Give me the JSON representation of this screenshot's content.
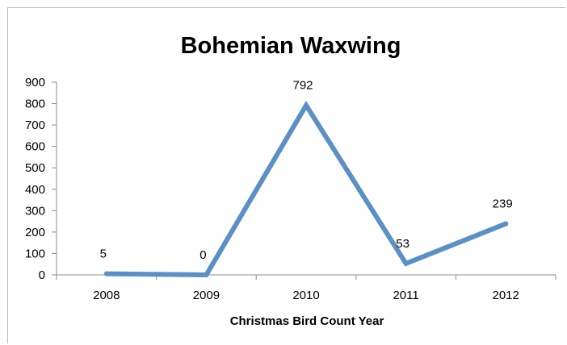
{
  "chart_data": {
    "type": "line",
    "title": "Bohemian Waxwing",
    "xlabel": "Christmas Bird Count Year",
    "ylabel": "",
    "categories": [
      "2008",
      "2009",
      "2010",
      "2011",
      "2012"
    ],
    "series": [
      {
        "values": [
          5,
          0,
          792,
          53,
          239
        ],
        "data_labels": [
          "5",
          "0",
          "792",
          "53",
          "239"
        ]
      }
    ],
    "ylim": [
      0,
      900
    ],
    "y_ticks": [
      0,
      100,
      200,
      300,
      400,
      500,
      600,
      700,
      800,
      900
    ],
    "grid": false,
    "legend": "none",
    "colors": {
      "line": "#5b8fc7",
      "axis": "#8c8c8c"
    }
  }
}
